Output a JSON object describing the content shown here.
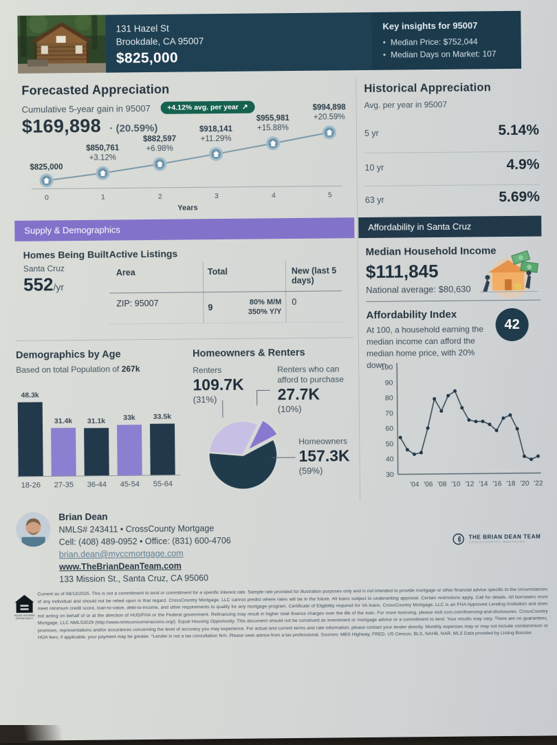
{
  "header": {
    "address_line1": "131 Hazel St",
    "address_line2": "Brookdale, CA 95007",
    "price": "$825,000",
    "insights": {
      "title": "Key insights for 95007",
      "items": [
        "Median Price: $752,044",
        "Median Days on Market: 107"
      ]
    }
  },
  "forecast": {
    "title": "Forecasted Appreciation",
    "subtitle": "Cumulative 5-year gain in 95007",
    "badge_label": "+4.12% avg. per year",
    "badge_icon": "↗",
    "gain_value": "$169,898",
    "gain_pct": "· (20.59%)"
  },
  "historical": {
    "title": "Historical Appreciation",
    "subtitle": "Avg. per year in 95007",
    "rows": [
      {
        "label": "5 yr",
        "value": "5.14%"
      },
      {
        "label": "10 yr",
        "value": "4.9%"
      },
      {
        "label": "63 yr",
        "value": "5.69%"
      }
    ]
  },
  "bands": {
    "left": "Supply & Demographics",
    "right": "Affordability in Santa Cruz"
  },
  "supply": {
    "homes_title": "Homes Being Built",
    "homes_area": "Santa Cruz",
    "homes_value": "552",
    "homes_unit": "/yr",
    "listings_title": "Active Listings",
    "table": {
      "headers": [
        "Area",
        "Total",
        "New (last 5 days)"
      ],
      "row": {
        "area": "ZIP: 95007",
        "total": "9",
        "change_mm": "80% M/M",
        "change_yy": "350% Y/Y",
        "new": "0"
      }
    }
  },
  "demographics": {
    "title": "Demographics by Age",
    "subtitle_prefix": "Based on total Population of ",
    "subtitle_bold": "267k"
  },
  "owners": {
    "title": "Homeowners & Renters",
    "renters_label": "Renters",
    "renters_value": "109.7K",
    "renters_pct": "(31%)",
    "afford_label": "Renters who can afford to purchase",
    "afford_value": "27.7K",
    "afford_pct": "(10%)",
    "homeowners_label": "Homeowners",
    "homeowners_value": "157.3K",
    "homeowners_pct": "(59%)"
  },
  "affordability": {
    "income_title": "Median Household Income",
    "income_value": "$111,845",
    "income_national": "National average: $80,630",
    "index_title": "Affordability Index",
    "index_desc": "At 100, a household earning the median income can afford the median home price, with 20% down.",
    "index_value": "42"
  },
  "agent": {
    "name": "Brian Dean",
    "nmls": "NMLS# 243411 • CrossCounty Mortgage",
    "phones": "Cell: (408) 489-0952 • Office: (831) 600-4706",
    "email": "brian.dean@myccmortgage.com",
    "website": "www.TheBrianDeanTeam.com",
    "address": "133 Mission St., Santa Cruz, CA 95060",
    "team_logo_line1": "THE BRIAN DEAN TEAM",
    "team_logo_line2": "CROSSCOUNTRY MORTGAGE"
  },
  "disclaimer": "Current as of 08/13/2025. This is not a commitment to lend or commitment for a specific interest rate. Sample rate provided for illustration purposes only and is not intended to provide mortgage or other financial advice specific to the circumstances of any individual and should not be relied upon in that regard. CrossCountry Mortgage, LLC cannot predict where rates will be in the future. All loans subject to underwriting approval. Certain restrictions apply. Call for details. All borrowers must meet minimum credit score, loan-to-value, debt-to-income, and other requirements to qualify for any mortgage program. Certificate of Eligibility required for VA loans. CrossCountry Mortgage, LLC is an FHA Approved Lending Institution and does not acting on behalf of or at the direction of HUD/FHA or the Federal government. Refinancing may result in higher total finance charges over the life of the loan. For more licensing, please visit ccm.com/licensing-and-disclosures. CrossCountry Mortgage, LLC NMLS3029 (http://www.nmlsconsumeraccess.org/). Equal Housing Opportunity. This document should not be construed as investment or mortgage advice or a commitment to lend. Your results may vary. There are no guarantees, promises, representations and/or assurances concerning the level of accuracy you may experience. For actual and current terms and rate information, please contact your lender directly. Monthly expenses may or may not include condominium or HOA fees; if applicable, your payment may be greater. *Lender is not a tax consultation firm. Please seek advice from a tax professional. Sources: MBS Highway, FRED, US Census, BLS, NAHB, NAR. MLS Data provided by Listing Booster.",
  "chart_data": [
    {
      "id": "forecast",
      "type": "line",
      "title": "Forecasted Appreciation",
      "x": [
        0,
        1,
        2,
        3,
        4,
        5
      ],
      "xlabel": "Years",
      "values": [
        825000,
        850761,
        882597,
        918141,
        955981,
        994898
      ],
      "point_labels": [
        "$825,000",
        "$850,761",
        "$882,597",
        "$918,141",
        "$955,981",
        "$994,898"
      ],
      "point_pcts": [
        "",
        "+3.12%",
        "+6.98%",
        "+11.29%",
        "+15.88%",
        "+20.59%"
      ],
      "line_color": "#7b98a7",
      "marker_color": "#6d93a8",
      "marker_ring": "#a3bcc9"
    },
    {
      "id": "age",
      "type": "bar",
      "title": "Demographics by Age",
      "categories": [
        "18-26",
        "27-35",
        "36-44",
        "45-54",
        "55-64"
      ],
      "values": [
        48.3,
        31.4,
        31.1,
        33,
        33.5
      ],
      "value_labels": [
        "48.3k",
        "31.4k",
        "31.1k",
        "33k",
        "33.5k"
      ],
      "bar_colors": [
        "#22394b",
        "#8b7fd1",
        "#22394b",
        "#8b7fd1",
        "#22394b"
      ]
    },
    {
      "id": "tenure",
      "type": "pie",
      "title": "Homeowners & Renters",
      "slices": [
        {
          "label": "Renters",
          "pct": 31,
          "color": "#c7c0e4",
          "exploded": false
        },
        {
          "label": "Renters who can afford to purchase",
          "pct": 10,
          "color": "#8878cf",
          "exploded": true
        },
        {
          "label": "Homeowners",
          "pct": 59,
          "color": "#203b4c",
          "exploded": false
        }
      ]
    },
    {
      "id": "afford_history",
      "type": "line",
      "title": "Affordability Index history",
      "x": [
        2002,
        2003,
        2004,
        2005,
        2006,
        2007,
        2008,
        2009,
        2010,
        2011,
        2012,
        2013,
        2014,
        2015,
        2016,
        2017,
        2018,
        2019,
        2020,
        2021,
        2022
      ],
      "values": [
        54,
        46,
        43,
        44,
        60,
        79,
        71,
        81,
        84,
        73,
        65,
        64,
        64,
        62,
        58,
        66,
        68,
        59,
        41,
        39,
        41
      ],
      "ylim": [
        30,
        100
      ],
      "yticks": [
        100,
        90,
        80,
        70,
        60,
        50,
        40,
        30
      ],
      "xtick_labels": [
        "'04",
        "'06",
        "'08",
        "'10",
        "'12",
        "'14",
        "'16",
        "'18",
        "'20",
        "'22"
      ],
      "line_color": "#3a4c58",
      "dot_color": "#22384a"
    }
  ]
}
